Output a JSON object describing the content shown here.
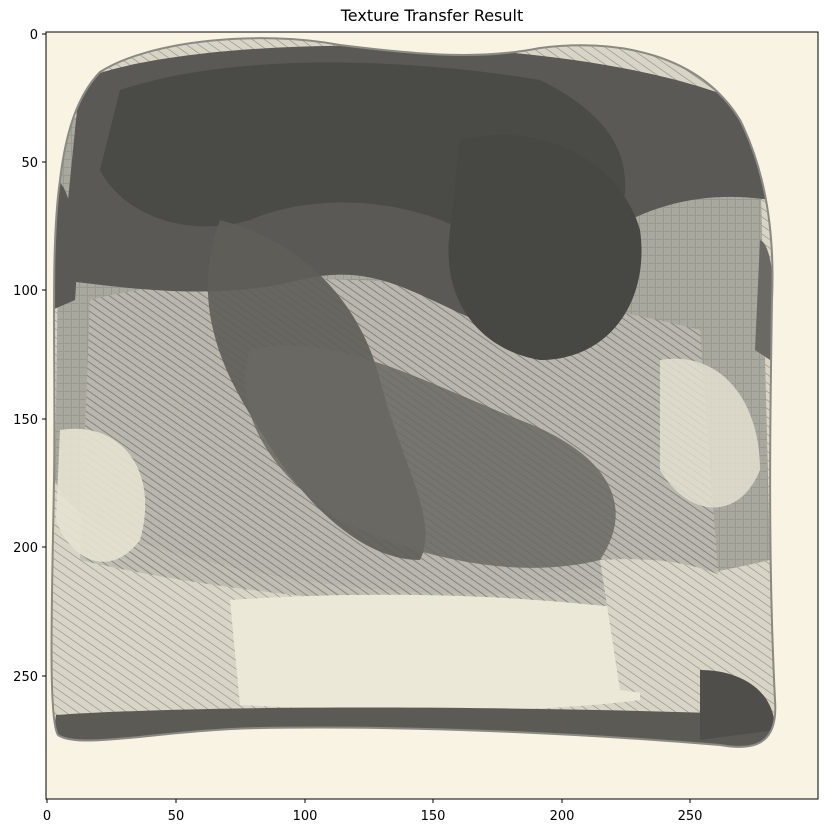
{
  "figure": {
    "title": "Texture Transfer Result"
  },
  "axes": {
    "x_ticks": [
      "0",
      "50",
      "100",
      "150",
      "200",
      "250"
    ],
    "y_ticks": [
      "0",
      "50",
      "100",
      "150",
      "200",
      "250"
    ]
  },
  "image": {
    "subject": "toast-slice-texture",
    "background_color": "#f8f3e3",
    "dark_color": "#4a4a46",
    "mid_color": "#9d9c94",
    "light_color": "#e3dfcf"
  }
}
